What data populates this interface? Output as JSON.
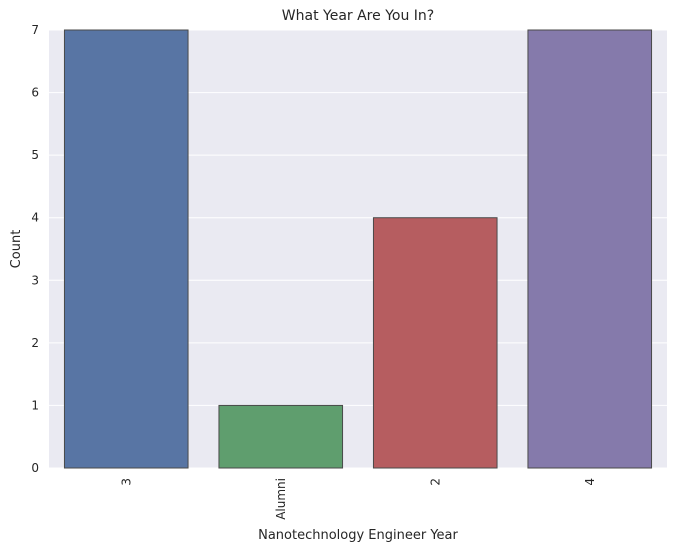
{
  "chart_data": {
    "type": "bar",
    "title": "What Year Are You In?",
    "xlabel": "Nanotechnology Engineer Year",
    "ylabel": "Count",
    "categories": [
      "3",
      "Alumni",
      "2",
      "4"
    ],
    "values": [
      7,
      1,
      4,
      7
    ],
    "ylim": [
      0,
      7
    ],
    "yticks": [
      "0",
      "1",
      "2",
      "3",
      "4",
      "5",
      "6",
      "7"
    ],
    "grid": true,
    "legend": "none",
    "colors": [
      "#5875a4",
      "#5f9e6e",
      "#b65d60",
      "#857aab"
    ],
    "background": "#eaeaf2",
    "edge_color": "#4a4a4a"
  }
}
